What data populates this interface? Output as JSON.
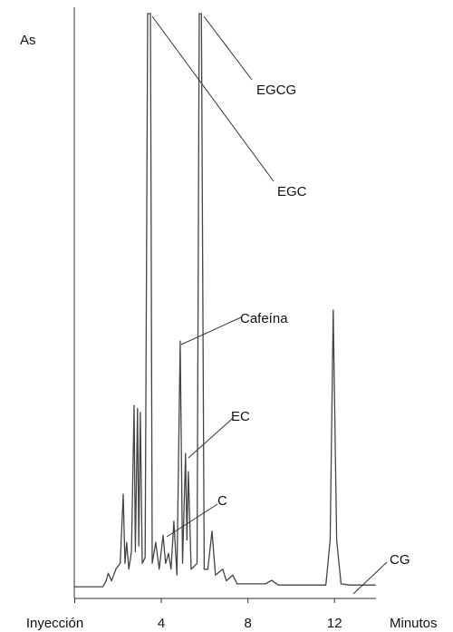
{
  "chart_data": {
    "type": "line",
    "y_label": "As",
    "x_label": "Minutos",
    "x": [
      0,
      1.3,
      1.45,
      1.55,
      1.7,
      1.9,
      2.1,
      2.24,
      2.32,
      2.4,
      2.5,
      2.62,
      2.74,
      2.8,
      2.9,
      2.96,
      3.03,
      3.12,
      3.25,
      3.37,
      3.5,
      3.58,
      3.74,
      3.9,
      4.08,
      4.2,
      4.33,
      4.45,
      4.58,
      4.72,
      4.87,
      4.98,
      5.12,
      5.18,
      5.25,
      5.38,
      5.65,
      5.75,
      5.85,
      5.98,
      6.15,
      6.34,
      6.5,
      6.84,
      7.0,
      7.3,
      7.5,
      8.8,
      9.1,
      9.4,
      11.6,
      11.8,
      11.94,
      12.1,
      12.3,
      12.7,
      13.0,
      13.9
    ],
    "series": [
      {
        "color": "#444444",
        "values": [
          2,
          2,
          3,
          4.3,
          3,
          5,
          6,
          17.8,
          6,
          9.6,
          5,
          8,
          33,
          8,
          32.5,
          9,
          31.8,
          6,
          7,
          100,
          100,
          6,
          9.6,
          5,
          10.8,
          6,
          7.7,
          5,
          13.2,
          4,
          44,
          6,
          24.8,
          10,
          21.7,
          5,
          6,
          100,
          100,
          5,
          5,
          11.5,
          4,
          5,
          3,
          4,
          2.5,
          2.5,
          3.1,
          2.3,
          2.3,
          10,
          49.3,
          10,
          2.5,
          2.3,
          2.3,
          2.3
        ]
      }
    ],
    "xlim": [
      0,
      14
    ],
    "ylim": [
      0,
      100
    ],
    "xticks": [
      {
        "value": 0,
        "label": "Inyección"
      },
      4,
      8,
      12
    ],
    "annotations": [
      "EGCG",
      "EGC",
      "Cafeína",
      "EC",
      "C",
      "CG"
    ]
  }
}
